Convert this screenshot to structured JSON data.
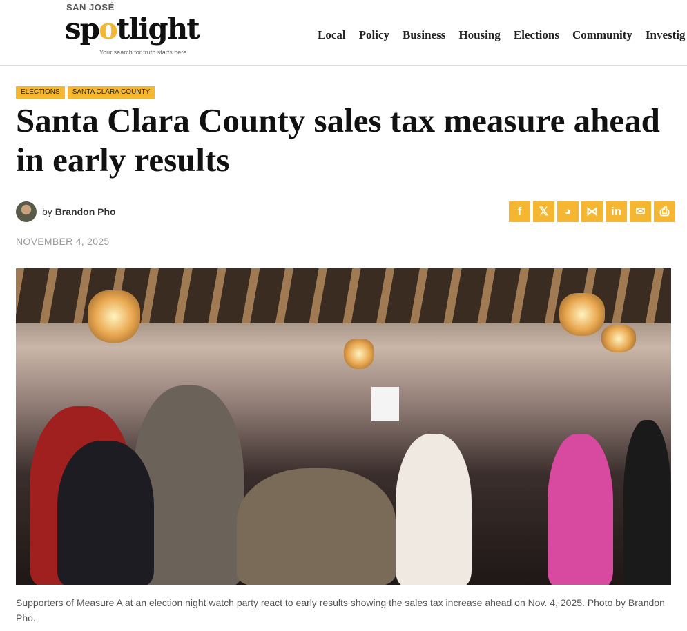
{
  "site": {
    "logo_top": "SAN JOSÉ",
    "logo_main": "spotlight",
    "tagline": "Your search for truth starts here."
  },
  "nav": [
    "Local",
    "Policy",
    "Business",
    "Housing",
    "Elections",
    "Community",
    "Investig"
  ],
  "article": {
    "tags": [
      "Elections",
      "Santa Clara County"
    ],
    "title": "Santa Clara County sales tax measure ahead in early results",
    "by": "by",
    "author": "Brandon Pho",
    "date": "NOVEMBER 4, 2025",
    "caption": "Supporters of Measure A at an election night watch party react to early results showing the sales tax increase ahead on Nov. 4, 2025. Photo by Brandon Pho."
  },
  "share": [
    {
      "icon": "facebook-icon",
      "glyph": "f"
    },
    {
      "icon": "x-icon",
      "glyph": "𝕏"
    },
    {
      "icon": "reddit-icon",
      "glyph": "◕"
    },
    {
      "icon": "bluesky-icon",
      "glyph": "⋈"
    },
    {
      "icon": "linkedin-icon",
      "glyph": "in"
    },
    {
      "icon": "email-icon",
      "glyph": "✉"
    },
    {
      "icon": "print-icon",
      "glyph": "⎙"
    }
  ],
  "colors": {
    "accent": "#f5b731"
  }
}
